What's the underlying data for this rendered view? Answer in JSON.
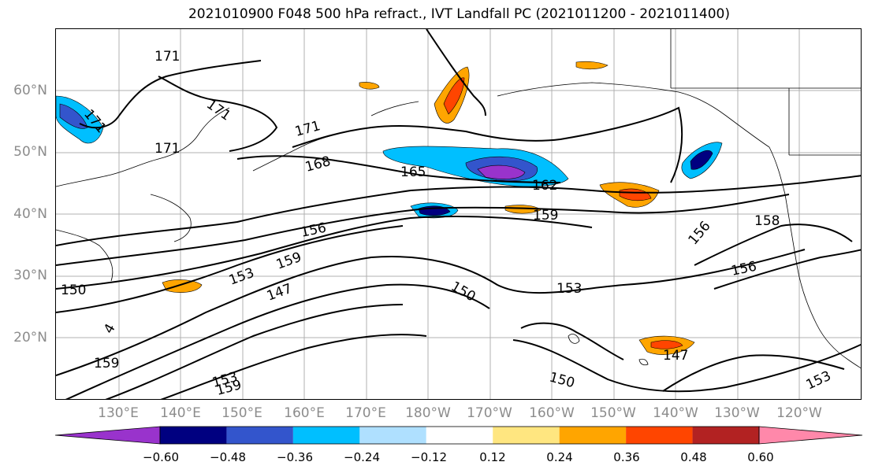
{
  "title": "2021010900 F048 500 hPa refract., IVT Landfall PC (2021011200 - 2021011400)",
  "lat_labels": [
    "60°N",
    "50°N",
    "40°N",
    "30°N",
    "20°N"
  ],
  "lon_labels": [
    "130°E",
    "140°E",
    "150°E",
    "160°E",
    "170°E",
    "180°W",
    "170°W",
    "160°W",
    "150°W",
    "140°W",
    "130°W",
    "120°W"
  ],
  "contour_labels": [
    "171",
    "171",
    "171",
    "171",
    "171",
    "168",
    "165",
    "162",
    "159",
    "158",
    "156",
    "156",
    "156",
    "153",
    "153",
    "150",
    "150",
    "150",
    "147",
    "147",
    "159",
    "159",
    "159",
    "153",
    "153",
    "4"
  ],
  "colorbar": {
    "ticks": [
      "−0.60",
      "−0.48",
      "−0.36",
      "−0.24",
      "−0.12",
      "0.12",
      "0.24",
      "0.36",
      "0.48",
      "0.60"
    ],
    "colors": [
      "#9933cc",
      "#000080",
      "#3355cc",
      "#00bfff",
      "#afe0ff",
      "#ffffff",
      "#ffe680",
      "#ffa500",
      "#ff4500",
      "#b22222",
      "#ff88aa"
    ]
  }
}
